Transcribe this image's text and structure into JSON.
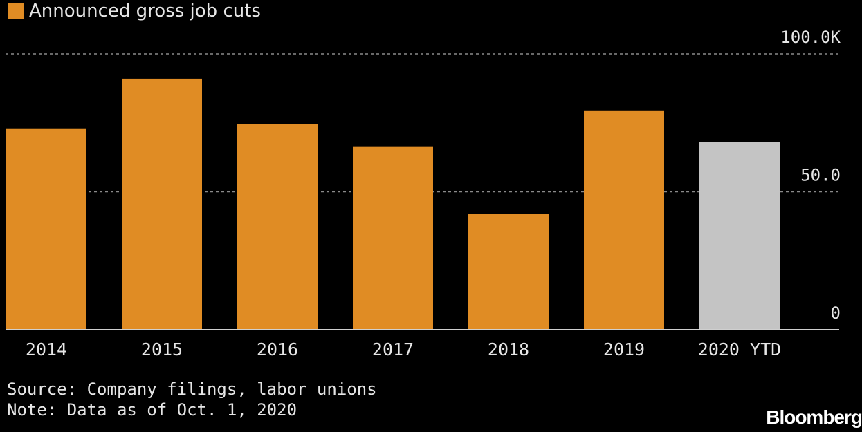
{
  "legend": {
    "label": "Announced gross job cuts",
    "color": "#e08c24"
  },
  "chart_data": {
    "type": "bar",
    "categories": [
      "2014",
      "2015",
      "2016",
      "2017",
      "2018",
      "2019",
      "2020 YTD"
    ],
    "series": [
      {
        "name": "Announced gross job cuts",
        "values": [
          73,
          91,
          74.5,
          66.5,
          42,
          79.5,
          68
        ],
        "colors": [
          "#e08c24",
          "#e08c24",
          "#e08c24",
          "#e08c24",
          "#e08c24",
          "#e08c24",
          "#c4c4c4"
        ]
      }
    ],
    "ylim": [
      0,
      100
    ],
    "yticks": [
      {
        "value": 100,
        "label": "100.0K"
      },
      {
        "value": 50,
        "label": "50.0"
      },
      {
        "value": 0,
        "label": "0"
      }
    ],
    "grid": true,
    "legend_position": "top-left"
  },
  "footer": {
    "source": "Source: Company filings, labor unions",
    "note": "Note: Data as of Oct. 1, 2020"
  },
  "brand": "Bloomberg"
}
